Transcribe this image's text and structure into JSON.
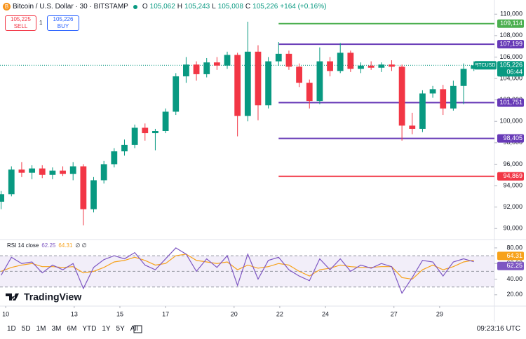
{
  "header": {
    "title": "Bitcoin / U.S. Dollar · 30 · BITSTAMP",
    "ohlc": [
      {
        "k": "O",
        "v": "105,062"
      },
      {
        "k": "H",
        "v": "105,243"
      },
      {
        "k": "L",
        "v": "105,008"
      },
      {
        "k": "C",
        "v": "105,226"
      }
    ],
    "change": "+164 (+0.16%)",
    "sell": {
      "price": "105,225",
      "label": "SELL"
    },
    "qty": "1",
    "buy": {
      "price": "105,226",
      "label": "BUY"
    }
  },
  "chart_data": [
    {
      "type": "candlestick",
      "up_color": "#089981",
      "down_color": "#f23645",
      "x": [
        9.8,
        10.25,
        10.7,
        11.15,
        11.6,
        12.05,
        12.5,
        12.95,
        13.4,
        13.85,
        14.3,
        14.75,
        15.2,
        15.65,
        16.1,
        16.55,
        17.0,
        17.45,
        17.9,
        18.35,
        18.8,
        19.25,
        19.7,
        20.15,
        20.6,
        21.05,
        21.5,
        21.95,
        22.4,
        22.85,
        23.3,
        23.75,
        24.2,
        24.65,
        25.1,
        25.55,
        26.0,
        26.45,
        26.9,
        27.35,
        27.8,
        28.25,
        28.7,
        29.15,
        29.6,
        30.05,
        30.5
      ],
      "open": [
        92500,
        93200,
        95500,
        95200,
        95600,
        95000,
        95400,
        95100,
        95800,
        91800,
        94500,
        96000,
        97200,
        97800,
        99400,
        98900,
        99100,
        100900,
        104200,
        105300,
        104400,
        105500,
        105200,
        106200,
        100500,
        106500,
        101500,
        105600,
        106300,
        105100,
        103600,
        101900,
        105600,
        104700,
        106400,
        104900,
        105200,
        105000,
        105300,
        105100,
        99600,
        99300,
        102600,
        103000,
        101200,
        103300,
        104900
      ],
      "high": [
        93500,
        95800,
        96200,
        95900,
        95900,
        95700,
        95800,
        96200,
        96000,
        94800,
        96300,
        97500,
        98300,
        99700,
        99800,
        99300,
        101200,
        104500,
        106000,
        105600,
        105900,
        106000,
        106500,
        106400,
        109300,
        107100,
        106000,
        107400,
        106600,
        105400,
        103900,
        106900,
        106000,
        107300,
        106600,
        105500,
        105600,
        105500,
        105700,
        105300,
        100800,
        102900,
        103300,
        103400,
        103800,
        105400,
        105600
      ],
      "low": [
        91800,
        93000,
        94800,
        94600,
        94700,
        94600,
        94900,
        94500,
        90300,
        91500,
        94200,
        95700,
        96800,
        97500,
        98200,
        97300,
        98900,
        100600,
        103600,
        103800,
        104100,
        104800,
        104900,
        98600,
        100000,
        100100,
        101200,
        105200,
        104800,
        103200,
        101200,
        101600,
        104200,
        104500,
        104600,
        104500,
        104800,
        104600,
        104700,
        98200,
        98800,
        99000,
        102200,
        100600,
        101000,
        101600,
        104700
      ],
      "close": [
        93200,
        95500,
        95200,
        95600,
        95000,
        95400,
        95100,
        95800,
        91800,
        94500,
        96000,
        97200,
        97800,
        99400,
        98900,
        99100,
        100900,
        104200,
        105300,
        104400,
        105500,
        105200,
        106200,
        100500,
        106500,
        101500,
        105600,
        106300,
        105100,
        103600,
        101900,
        105600,
        104700,
        106400,
        104900,
        105200,
        105000,
        105300,
        105100,
        99600,
        99300,
        102600,
        103000,
        101200,
        103300,
        104900,
        105226
      ],
      "xlim": [
        9.75,
        31.4
      ],
      "xticks": [
        10,
        13,
        15,
        17,
        20,
        22,
        24,
        27,
        29
      ],
      "ylim": [
        89100,
        110800
      ],
      "yticks": [
        {
          "value": 90000,
          "label": "90,000"
        },
        {
          "value": 92000,
          "label": "92,000"
        },
        {
          "value": 94000,
          "label": "94,000"
        },
        {
          "value": 96000,
          "label": "96,000"
        },
        {
          "value": 98000,
          "label": "98,000"
        },
        {
          "value": 100000,
          "label": "100,000"
        },
        {
          "value": 102000,
          "label": "102,000"
        },
        {
          "value": 104000,
          "label": "104,000"
        },
        {
          "value": 106000,
          "label": "106,000"
        },
        {
          "value": 108000,
          "label": "108,000"
        },
        {
          "value": 110000,
          "label": "110,000"
        }
      ],
      "levels": [
        {
          "value": 109114,
          "label": "109,114",
          "color": "#4caf50",
          "from_x": 21.95
        },
        {
          "value": 107199,
          "label": "107,199",
          "color": "#673ab7",
          "from_x": 21.95
        },
        {
          "value": 101751,
          "label": "101,751",
          "color": "#673ab7",
          "from_x": 21.95
        },
        {
          "value": 98405,
          "label": "98,405",
          "color": "#673ab7",
          "from_x": 21.95
        },
        {
          "value": 94869,
          "label": "94,869",
          "color": "#f23645",
          "from_x": 21.95
        }
      ],
      "last_price": {
        "value": 105226,
        "label": "105,226",
        "symbol": "BTCUSD",
        "countdown": "06:44",
        "color": "#089981"
      }
    },
    {
      "type": "line",
      "title": "RSI 14 close",
      "extra": "∅ ∅",
      "series": [
        {
          "color": "#7e57c2",
          "values": [
            45,
            68,
            60,
            62,
            48,
            58,
            52,
            60,
            28,
            55,
            65,
            70,
            66,
            74,
            58,
            52,
            66,
            80,
            72,
            50,
            66,
            55,
            70,
            32,
            72,
            40,
            64,
            68,
            52,
            44,
            38,
            66,
            52,
            66,
            50,
            58,
            54,
            60,
            56,
            22,
            42,
            64,
            62,
            44,
            62,
            66,
            62.25
          ]
        },
        {
          "color": "#f7a21b",
          "values": [
            50,
            55,
            58,
            60,
            56,
            56,
            55,
            56,
            48,
            50,
            55,
            62,
            64,
            68,
            64,
            58,
            60,
            70,
            72,
            64,
            62,
            60,
            62,
            52,
            58,
            54,
            56,
            60,
            58,
            50,
            44,
            52,
            54,
            58,
            56,
            55,
            55,
            56,
            56,
            42,
            40,
            52,
            58,
            52,
            56,
            62,
            64.31
          ]
        }
      ],
      "ylim": [
        10,
        88
      ],
      "yticks": [
        {
          "value": 20,
          "label": "20.00"
        },
        {
          "value": 40,
          "label": "40.00"
        },
        {
          "value": 60,
          "label": "60.00"
        },
        {
          "value": 80,
          "label": "80.00"
        }
      ],
      "band": [
        30,
        70
      ],
      "midline": 50
    }
  ],
  "logo": "TradingView",
  "toolbar": {
    "ranges": [
      "1D",
      "5D",
      "1M",
      "3M",
      "6M",
      "YTD",
      "1Y",
      "5Y",
      "All"
    ],
    "time": "09:23:16 UTC"
  }
}
